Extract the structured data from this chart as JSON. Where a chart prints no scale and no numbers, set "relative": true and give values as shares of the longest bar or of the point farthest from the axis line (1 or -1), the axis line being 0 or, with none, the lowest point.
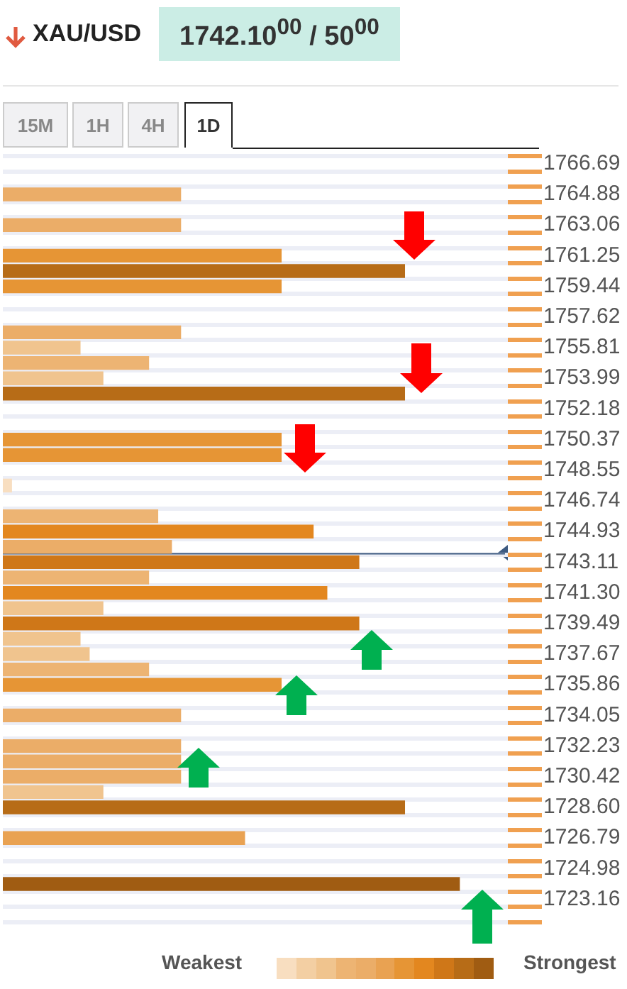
{
  "chart_data": {
    "type": "bar",
    "orientation": "horizontal",
    "relative": true,
    "title": "XAU/USD",
    "subtitle": "1742.10$^{00}$ / 50$^{00}$",
    "categories": [
      "1766.69",
      null,
      "1764.88",
      null,
      "1763.06",
      null,
      "1761.25",
      null,
      "1759.44",
      null,
      "1757.62",
      null,
      "1755.81",
      null,
      "1753.99",
      null,
      "1752.18",
      null,
      "1750.37",
      null,
      "1748.55",
      null,
      "1746.74",
      null,
      "1744.93",
      null,
      "1743.11",
      null,
      "1741.30",
      null,
      "1739.49",
      null,
      "1737.67",
      null,
      "1735.86",
      null,
      "1734.05",
      null,
      "1732.23",
      null,
      "1730.42",
      null,
      "1728.60",
      null,
      "1726.79",
      null,
      "1724.98",
      null,
      "1723.16",
      null
    ],
    "values": [
      null,
      null,
      0.39,
      null,
      0.39,
      null,
      0.61,
      0.88,
      0.61,
      null,
      null,
      0.39,
      0.17,
      0.32,
      0.22,
      0.88,
      null,
      null,
      0.61,
      0.61,
      null,
      0.02,
      null,
      0.34,
      0.68,
      0.37,
      0.78,
      0.32,
      0.71,
      0.22,
      0.78,
      0.17,
      0.19,
      0.32,
      0.61,
      null,
      0.39,
      null,
      0.39,
      0.39,
      0.39,
      0.22,
      0.88,
      null,
      0.53,
      null,
      null,
      1,
      null,
      null
    ],
    "colors": [
      null,
      null,
      "#ebad68",
      null,
      "#ebad68",
      null,
      "#e69535",
      "#b76c17",
      "#e69535",
      null,
      null,
      "#ebad68",
      "#f0c48e",
      "#edb473",
      "#f0c48e",
      "#b76c17",
      null,
      null,
      "#e69535",
      "#e69535",
      null,
      "#f8dec0",
      null,
      "#edb473",
      "#e3871f",
      "#ebad68",
      "#cf7718",
      "#edb473",
      "#e3871f",
      "#f0c48e",
      "#cf7718",
      "#f0c48e",
      "#f0c48e",
      "#edb473",
      "#e69535",
      null,
      "#ebad68",
      null,
      "#ebad68",
      "#ebad68",
      "#ebad68",
      "#f0c48e",
      "#b76c17",
      null,
      "#e9a252",
      null,
      null,
      "#a05c12",
      null,
      null
    ],
    "ref_lines": [
      {
        "axis": "y",
        "value": "1743.11",
        "color": "#3d5a80"
      }
    ],
    "grid": "y",
    "legend": false,
    "annotations": [
      "15M",
      "1H",
      "4H",
      "1D",
      "Weakest",
      "Strongest"
    ]
  }
}
